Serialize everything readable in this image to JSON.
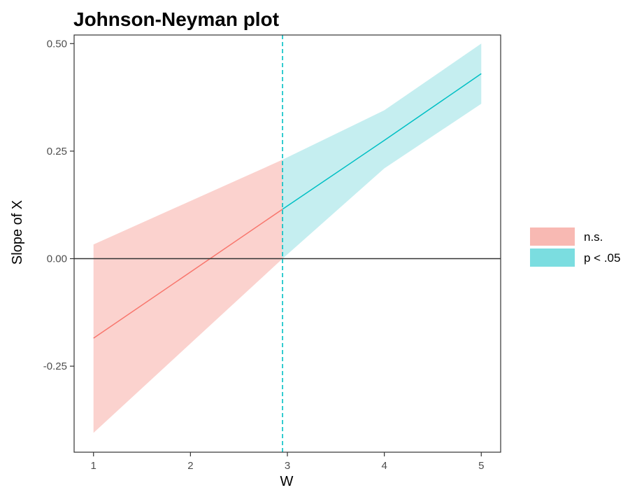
{
  "chart_data": {
    "type": "line",
    "title": "Johnson-Neyman plot",
    "xlabel": "W",
    "ylabel": "Slope of X",
    "xlim": [
      0.8,
      5.2
    ],
    "ylim": [
      -0.45,
      0.52
    ],
    "x_ticks": [
      1,
      2,
      3,
      4,
      5
    ],
    "x_tick_labels": [
      "1",
      "2",
      "3",
      "4",
      "5"
    ],
    "y_ticks": [
      -0.25,
      0.0,
      0.25,
      0.5
    ],
    "y_tick_labels": [
      "-0.25",
      "0.00",
      "0.25",
      "0.50"
    ],
    "grid": false,
    "zero_line": 0,
    "threshold_x": 2.95,
    "series": [
      {
        "name": "n.s.",
        "color": "#f8766d",
        "fill": "#fbd2ce",
        "x": [
          1,
          2.95
        ],
        "y": [
          -0.185,
          0.115
        ],
        "ci_lower": [
          -0.405,
          0.0
        ],
        "ci_upper": [
          0.033,
          0.23
        ]
      },
      {
        "name": "p < .05",
        "color": "#00bfc4",
        "fill": "#c5eef0",
        "x": [
          2.95,
          4,
          5
        ],
        "y": [
          0.115,
          0.275,
          0.43
        ],
        "ci_lower": [
          0.0,
          0.21,
          0.36
        ],
        "ci_upper": [
          0.23,
          0.345,
          0.5
        ]
      }
    ],
    "legend": {
      "position": "right",
      "entries": [
        {
          "label": "n.s.",
          "color": "#f8b9b3"
        },
        {
          "label": "p < .05",
          "color": "#7bdde0"
        }
      ]
    }
  }
}
